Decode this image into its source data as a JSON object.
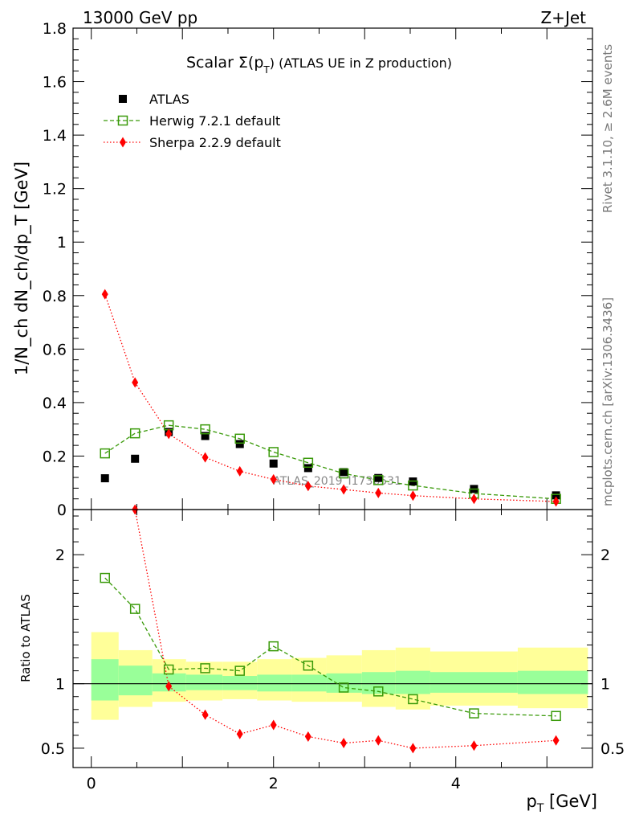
{
  "header": {
    "left": "13000 GeV pp",
    "right": "Z+Jet"
  },
  "side_labels": {
    "rivet": "Rivet 3.1.10, ≥ 2.6M events",
    "mcplots": "mcplots.cern.ch [arXiv:1306.3436]"
  },
  "watermark": "ATLAS_2019_I1736531",
  "colors": {
    "atlas": "#000000",
    "herwig": "#3a9a0a",
    "sherpa": "#ff0000",
    "band_outer": "#ffff99",
    "band_inner": "#99ff99"
  },
  "chart_data": [
    {
      "type": "scatter",
      "title_main": "Scalar Σ(p",
      "title_sub": "T",
      "title_tail": ") (ATLAS UE in Z production)",
      "ylabel": "1/N_ch dN_ch/dp_T [GeV]",
      "ylim": [
        0,
        1.8
      ],
      "xlim": [
        -0.2,
        5.5
      ],
      "yticks": [
        {
          "v": 0,
          "label": "0"
        },
        {
          "v": 0.2,
          "label": "0.2"
        },
        {
          "v": 0.4,
          "label": "0.4"
        },
        {
          "v": 0.6,
          "label": "0.6"
        },
        {
          "v": 0.8,
          "label": "0.8"
        },
        {
          "v": 1.0,
          "label": "1"
        },
        {
          "v": 1.2,
          "label": "1.2"
        },
        {
          "v": 1.4,
          "label": "1.4"
        },
        {
          "v": 1.6,
          "label": "1.6"
        },
        {
          "v": 1.8,
          "label": "1.8"
        }
      ],
      "legend_placement": "top-left",
      "series": [
        {
          "name": "ATLAS",
          "x": [
            0.15,
            0.48,
            0.85,
            1.25,
            1.63,
            2.0,
            2.38,
            2.77,
            3.15,
            3.53,
            4.2,
            5.1
          ],
          "values": [
            0.117,
            0.19,
            0.29,
            0.275,
            0.245,
            0.172,
            0.155,
            0.14,
            0.118,
            0.105,
            0.077,
            0.053
          ]
        },
        {
          "name": "Herwig 7.2.1 default",
          "x": [
            0.15,
            0.48,
            0.85,
            1.25,
            1.63,
            2.0,
            2.38,
            2.77,
            3.15,
            3.53,
            4.2,
            5.1
          ],
          "values": [
            0.21,
            0.285,
            0.315,
            0.3,
            0.265,
            0.215,
            0.175,
            0.135,
            0.11,
            0.09,
            0.06,
            0.04
          ]
        },
        {
          "name": "Sherpa 2.2.9 default",
          "x": [
            0.15,
            0.48,
            0.85,
            1.25,
            1.63,
            2.0,
            2.38,
            2.77,
            3.15,
            3.53,
            4.2,
            5.1
          ],
          "values": [
            0.805,
            0.475,
            0.283,
            0.195,
            0.143,
            0.113,
            0.088,
            0.075,
            0.062,
            0.052,
            0.04,
            0.03
          ]
        }
      ]
    },
    {
      "type": "line",
      "ylabel": "Ratio to ATLAS",
      "xlabel_main": "p",
      "xlabel_sub": "T",
      "xlabel_tail": " [GeV]",
      "ylim": [
        0.35,
        2.35
      ],
      "xlim": [
        -0.2,
        5.5
      ],
      "xticks": [
        {
          "v": 0,
          "label": "0"
        },
        {
          "v": 2,
          "label": "2"
        },
        {
          "v": 4,
          "label": "4"
        }
      ],
      "yticks": [
        {
          "v": 0.5,
          "label": "0.5"
        },
        {
          "v": 1.0,
          "label": "1"
        },
        {
          "v": 2.0,
          "label": "2"
        }
      ],
      "bands": [
        {
          "x0": 0.0,
          "x1": 0.3,
          "inner": [
            0.87,
            1.19
          ],
          "outer": [
            0.72,
            1.4
          ]
        },
        {
          "x0": 0.3,
          "x1": 0.67,
          "inner": [
            0.91,
            1.14
          ],
          "outer": [
            0.82,
            1.26
          ]
        },
        {
          "x0": 0.67,
          "x1": 1.04,
          "inner": [
            0.94,
            1.08
          ],
          "outer": [
            0.86,
            1.19
          ]
        },
        {
          "x0": 1.04,
          "x1": 1.44,
          "inner": [
            0.95,
            1.07
          ],
          "outer": [
            0.87,
            1.17
          ]
        },
        {
          "x0": 1.44,
          "x1": 1.82,
          "inner": [
            0.95,
            1.06
          ],
          "outer": [
            0.88,
            1.17
          ]
        },
        {
          "x0": 1.82,
          "x1": 2.2,
          "inner": [
            0.94,
            1.07
          ],
          "outer": [
            0.87,
            1.19
          ]
        },
        {
          "x0": 2.2,
          "x1": 2.58,
          "inner": [
            0.94,
            1.07
          ],
          "outer": [
            0.86,
            1.2
          ]
        },
        {
          "x0": 2.58,
          "x1": 2.97,
          "inner": [
            0.93,
            1.08
          ],
          "outer": [
            0.86,
            1.22
          ]
        },
        {
          "x0": 2.97,
          "x1": 3.34,
          "inner": [
            0.92,
            1.09
          ],
          "outer": [
            0.82,
            1.26
          ]
        },
        {
          "x0": 3.34,
          "x1": 3.72,
          "inner": [
            0.92,
            1.1
          ],
          "outer": [
            0.8,
            1.28
          ]
        },
        {
          "x0": 3.72,
          "x1": 4.68,
          "inner": [
            0.93,
            1.09
          ],
          "outer": [
            0.83,
            1.25
          ]
        },
        {
          "x0": 4.68,
          "x1": 5.45,
          "inner": [
            0.92,
            1.1
          ],
          "outer": [
            0.81,
            1.28
          ]
        }
      ],
      "series": [
        {
          "name": "Herwig 7.2.1 default",
          "x": [
            0.15,
            0.48,
            0.85,
            1.25,
            1.63,
            2.0,
            2.38,
            2.77,
            3.15,
            3.53,
            4.2,
            5.1
          ],
          "values": [
            1.82,
            1.58,
            1.11,
            1.12,
            1.1,
            1.29,
            1.14,
            0.97,
            0.94,
            0.88,
            0.77,
            0.75
          ]
        },
        {
          "name": "Sherpa 2.2.9 default",
          "x": [
            0.85,
            1.25,
            1.63,
            2.0,
            2.38,
            2.77,
            3.15,
            3.53,
            4.2,
            5.1
          ],
          "values": [
            0.98,
            0.76,
            0.61,
            0.68,
            0.59,
            0.54,
            0.56,
            0.5,
            0.52,
            0.56
          ]
        }
      ]
    }
  ]
}
